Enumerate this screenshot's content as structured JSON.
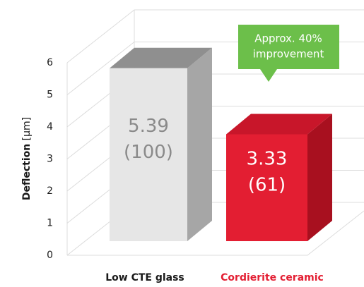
{
  "chart_data": {
    "type": "bar3d",
    "y_label": "Deflection",
    "y_unit": "[µm]",
    "categories": [
      "Low CTE glass",
      "Cordierite ceramic"
    ],
    "values": [
      5.39,
      3.33
    ],
    "value_labels": [
      "5.39",
      "3.33"
    ],
    "relative_labels": [
      "(100)",
      "(61)"
    ],
    "colors": [
      "#e6e6e6",
      "#e31e32"
    ],
    "side_colors": [
      "#a6a6a6",
      "#a8101f"
    ],
    "top_colors": [
      "#8f8f8f",
      "#c8162a"
    ],
    "value_label_colors": [
      "#8a8a8a",
      "#ffffff"
    ],
    "category_colors": [
      "#1a1a1a",
      "#e31e32"
    ],
    "annotation": [
      "Approx. 40%",
      "improvement"
    ],
    "annotation_color": "#6cbf4a",
    "ylim": [
      0,
      6
    ],
    "yticks": [
      0,
      1,
      2,
      3,
      4,
      5,
      6
    ],
    "grid": true
  }
}
